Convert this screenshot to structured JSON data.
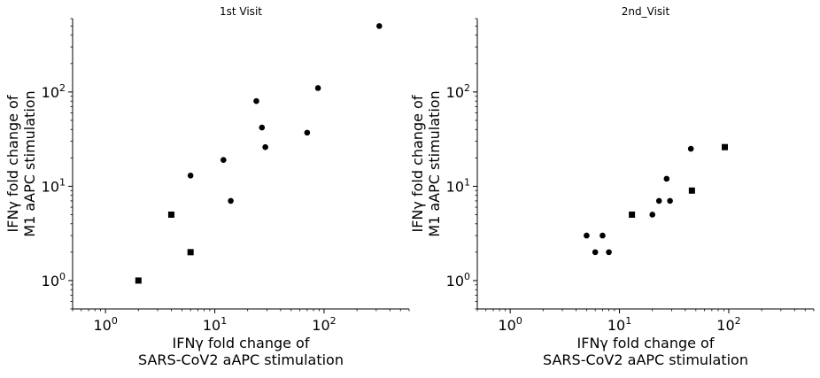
{
  "chart_data": [
    {
      "type": "scatter",
      "title": "1st Visit",
      "xlabel": [
        "IFNγ fold change of",
        "SARS-CoV2 aAPC stimulation"
      ],
      "ylabel": [
        "IFNγ fold change of",
        "M1 aAPC stimulation"
      ],
      "xscale": "log",
      "yscale": "log",
      "xlim": [
        0.5,
        600
      ],
      "ylim": [
        0.5,
        600
      ],
      "xticks": [
        {
          "base": "10",
          "exp": "0"
        },
        {
          "base": "10",
          "exp": "1"
        },
        {
          "base": "10",
          "exp": "2"
        }
      ],
      "yticks": [
        {
          "base": "10",
          "exp": "0"
        },
        {
          "base": "10",
          "exp": "1"
        },
        {
          "base": "10",
          "exp": "2"
        }
      ],
      "grid": false,
      "series": [
        {
          "marker": "circle",
          "color": "#000000",
          "points": [
            [
              6,
              13
            ],
            [
              12,
              19
            ],
            [
              14,
              7
            ],
            [
              24,
              80
            ],
            [
              27,
              42
            ],
            [
              29,
              26
            ],
            [
              70,
              37
            ],
            [
              88,
              110
            ],
            [
              320,
              500
            ]
          ]
        },
        {
          "marker": "square",
          "color": "#000000",
          "points": [
            [
              2,
              1
            ],
            [
              4,
              5
            ],
            [
              6,
              2
            ]
          ]
        }
      ]
    },
    {
      "type": "scatter",
      "title": "2nd_Visit",
      "xlabel": [
        "IFNγ fold change of",
        "SARS-CoV2 aAPC stimulation"
      ],
      "ylabel": [
        "IFNγ fold change of",
        "M1 aAPC stimulation"
      ],
      "xscale": "log",
      "yscale": "log",
      "xlim": [
        0.5,
        600
      ],
      "ylim": [
        0.5,
        600
      ],
      "xticks": [
        {
          "base": "10",
          "exp": "0"
        },
        {
          "base": "10",
          "exp": "1"
        },
        {
          "base": "10",
          "exp": "2"
        }
      ],
      "yticks": [
        {
          "base": "10",
          "exp": "0"
        },
        {
          "base": "10",
          "exp": "1"
        },
        {
          "base": "10",
          "exp": "2"
        }
      ],
      "grid": false,
      "series": [
        {
          "marker": "circle",
          "color": "#000000",
          "points": [
            [
              5,
              3
            ],
            [
              6,
              2
            ],
            [
              7,
              3
            ],
            [
              8,
              2
            ],
            [
              20,
              5
            ],
            [
              23,
              7
            ],
            [
              27,
              12
            ],
            [
              29,
              7
            ],
            [
              45,
              25
            ]
          ]
        },
        {
          "marker": "square",
          "color": "#000000",
          "points": [
            [
              13,
              5
            ],
            [
              46,
              9
            ],
            [
              92,
              26
            ]
          ]
        }
      ]
    }
  ]
}
